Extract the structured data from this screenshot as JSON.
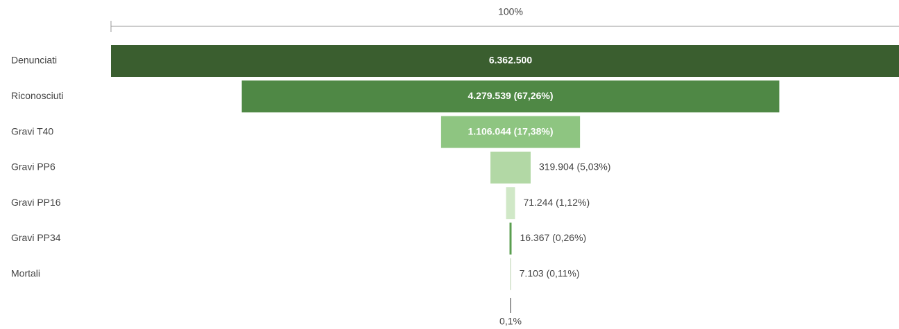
{
  "chart_data": {
    "type": "funnel",
    "top_label": "100%",
    "bottom_label": "0,1%",
    "categories": [
      "Denunciati",
      "Riconosciuti",
      "Gravi T40",
      "Gravi PP6",
      "Gravi PP16",
      "Gravi PP34",
      "Mortali"
    ],
    "values": [
      6362500,
      4279539,
      1106044,
      319904,
      71244,
      16367,
      7103
    ],
    "value_labels": [
      "6.362.500",
      "4.279.539 (67,26%)",
      "1.106.044 (17,38%)",
      "319.904 (5,03%)",
      "71.244 (1,12%)",
      "16.367 (0,26%)",
      "7.103 (0,11%)"
    ],
    "colors": [
      "#3a5e2f",
      "#4f8845",
      "#8ec581",
      "#b2d8a5",
      "#d0e8c7",
      "#5a9e4f",
      "#c8dcc0"
    ]
  }
}
